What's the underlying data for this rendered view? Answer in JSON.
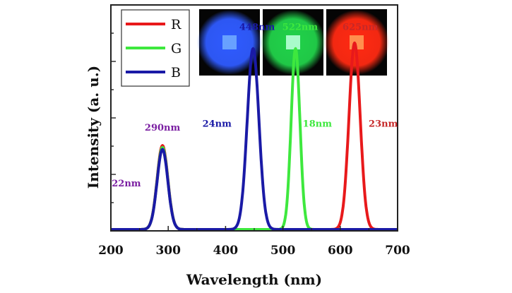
{
  "chart_data": {
    "type": "line",
    "xlabel": "Wavelength (nm)",
    "ylabel": "Intensity (a. u.)",
    "xlim": [
      200,
      700
    ],
    "ylim": [
      0,
      1.2
    ],
    "xticks": [
      "200",
      "300",
      "400",
      "500",
      "600",
      "700"
    ],
    "y_tick_labels_shown": false,
    "grid": false,
    "legend_position": "top-left",
    "series": [
      {
        "name": "R",
        "color": "#e8191b",
        "peaks": [
          {
            "center": 290,
            "fwhm": 22,
            "height": 0.45
          },
          {
            "center": 625,
            "fwhm": 23,
            "height": 1.0
          }
        ]
      },
      {
        "name": "G",
        "color": "#3ee83e",
        "peaks": [
          {
            "center": 290,
            "fwhm": 22,
            "height": 0.44
          },
          {
            "center": 522,
            "fwhm": 18,
            "height": 0.97
          }
        ]
      },
      {
        "name": "B",
        "color": "#1a1aa6",
        "peaks": [
          {
            "center": 290,
            "fwhm": 22,
            "height": 0.43
          },
          {
            "center": 448,
            "fwhm": 24,
            "height": 0.97
          }
        ]
      }
    ],
    "annotations": [
      {
        "text": "290nm",
        "x": 290,
        "y": 0.53,
        "color": "#7b1fa2"
      },
      {
        "text": "22nm",
        "x": 227,
        "y": 0.23,
        "color": "#7b1fa2"
      },
      {
        "text": "448nm",
        "x": 455,
        "y": 1.07,
        "color": "#1a1aa6"
      },
      {
        "text": "24nm",
        "x": 385,
        "y": 0.55,
        "color": "#1a1aa6"
      },
      {
        "text": "522nm",
        "x": 530,
        "y": 1.07,
        "color": "#3ee83e"
      },
      {
        "text": "18nm",
        "x": 560,
        "y": 0.55,
        "color": "#3ee83e"
      },
      {
        "text": "625nm",
        "x": 635,
        "y": 1.07,
        "color": "#c62828"
      },
      {
        "text": "23nm",
        "x": 675,
        "y": 0.55,
        "color": "#c62828"
      }
    ],
    "inset_photos": [
      {
        "name": "blue-emission-photo",
        "color": "#2f5bff",
        "center": "#6fa8ff"
      },
      {
        "name": "green-emission-photo",
        "color": "#21d24a",
        "center": "#b8ffd8"
      },
      {
        "name": "red-emission-photo",
        "color": "#ff2a12",
        "center": "#ff9a55"
      }
    ]
  }
}
